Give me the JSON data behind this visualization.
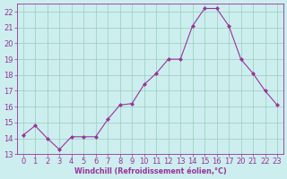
{
  "x_labels": [
    0,
    1,
    2,
    3,
    4,
    5,
    6,
    7,
    8,
    9,
    10,
    11,
    12,
    13,
    14,
    15,
    16,
    17,
    20,
    21,
    22,
    23
  ],
  "y": [
    14.2,
    14.8,
    14.0,
    13.3,
    14.1,
    14.1,
    14.1,
    15.2,
    16.1,
    16.2,
    17.4,
    18.1,
    19.0,
    19.0,
    21.1,
    22.2,
    22.2,
    21.1,
    19.0,
    18.1,
    17.0,
    16.1
  ],
  "line_color": "#993399",
  "marker": "D",
  "marker_size": 2.0,
  "bg_color": "#cceeee",
  "grid_color": "#99ccbb",
  "xlabel": "Windchill (Refroidissement éolien,°C)",
  "xlabel_color": "#993399",
  "tick_color": "#993399",
  "ylim": [
    13,
    22.5
  ],
  "yticks": [
    13,
    14,
    15,
    16,
    17,
    18,
    19,
    20,
    21,
    22
  ],
  "tick_fontsize": 6.0,
  "xlabel_fontsize": 5.8,
  "xlabel_fontweight": "bold"
}
